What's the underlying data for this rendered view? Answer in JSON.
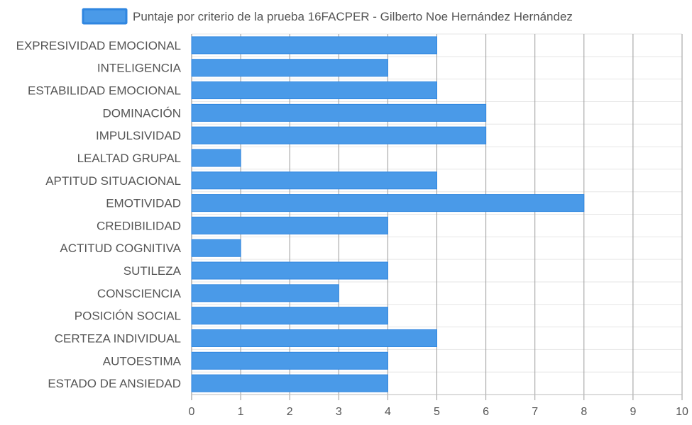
{
  "chart_data": {
    "type": "bar",
    "orientation": "horizontal",
    "categories": [
      "EXPRESIVIDAD EMOCIONAL",
      "INTELIGENCIA",
      "ESTABILIDAD EMOCIONAL",
      "DOMINACIÓN",
      "IMPULSIVIDAD",
      "LEALTAD GRUPAL",
      "APTITUD SITUACIONAL",
      "EMOTIVIDAD",
      "CREDIBILIDAD",
      "ACTITUD COGNITIVA",
      "SUTILEZA",
      "CONSCIENCIA",
      "POSICIÓN SOCIAL",
      "CERTEZA INDIVIDUAL",
      "AUTOESTIMA",
      "ESTADO DE ANSIEDAD"
    ],
    "series": [
      {
        "name": "Puntaje por criterio de la prueba 16FACPER - Gilberto Noe Hernández Hernández",
        "values": [
          5,
          4,
          5,
          6,
          6,
          1,
          5,
          8,
          4,
          1,
          4,
          3,
          4,
          5,
          4,
          4
        ]
      }
    ],
    "xlim": [
      0,
      10
    ],
    "xticks": [
      "0",
      "1",
      "2",
      "3",
      "4",
      "5",
      "6",
      "7",
      "8",
      "9",
      "10"
    ],
    "grid": true,
    "legend_position": "top",
    "colors": {
      "bar": "#4a9ae8",
      "bar_border": "#2f86e0",
      "grid": "#9a9a9a",
      "text": "#555555"
    }
  }
}
